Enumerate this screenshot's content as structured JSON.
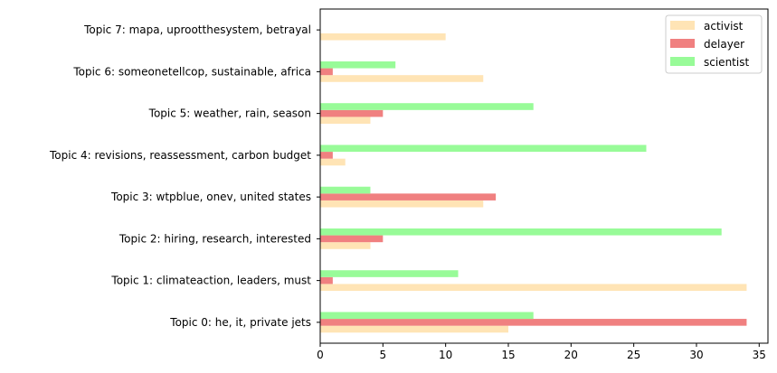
{
  "chart_data": {
    "type": "bar",
    "orientation": "horizontal",
    "title": "",
    "xlabel": "",
    "ylabel": "",
    "xlim": [
      0,
      35.7
    ],
    "xticks": [
      0,
      5,
      10,
      15,
      20,
      25,
      30,
      35
    ],
    "grid": false,
    "legend_position": "top-right",
    "categories": [
      "Topic 0: he, it, private jets",
      "Topic 1: climateaction, leaders, must",
      "Topic 2: hiring, research, interested",
      "Topic 3: wtpblue, onev, united states",
      "Topic 4: revisions, reassessment, carbon budget",
      "Topic 5: weather, rain, season",
      "Topic 6: someonetellcop, sustainable, africa",
      "Topic 7: mapa, uprootthesystem, betrayal"
    ],
    "series": [
      {
        "name": "activist",
        "color": "#ffe4b5",
        "values": [
          15,
          34,
          4,
          13,
          2,
          4,
          13,
          10
        ]
      },
      {
        "name": "delayer",
        "color": "#f08080",
        "values": [
          34,
          1,
          5,
          14,
          1,
          5,
          1,
          0
        ]
      },
      {
        "name": "scientist",
        "color": "#98fb98",
        "values": [
          17,
          11,
          32,
          4,
          26,
          17,
          6,
          0
        ]
      }
    ]
  }
}
